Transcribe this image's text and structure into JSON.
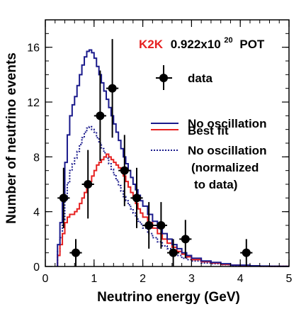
{
  "chart_data": {
    "type": "line",
    "xlabel": "Neutrino energy (GeV)",
    "ylabel": "Number of neutrino events",
    "xlim": [
      0,
      5
    ],
    "ylim": [
      0,
      18
    ],
    "x_ticks": [
      "0",
      "1",
      "2",
      "3",
      "4",
      "5"
    ],
    "y_ticks": [
      "0",
      "4",
      "8",
      "12",
      "16"
    ],
    "header": {
      "experiment": "K2K",
      "exposure": "0.922x10",
      "exponent": "20",
      "unit": "POT"
    },
    "legend_placement": "top-right",
    "legend": [
      {
        "label": "data"
      },
      {
        "label": "No oscillation"
      },
      {
        "label": "Best fit"
      },
      {
        "label": "No oscillation",
        "label_line2": "(normalized",
        "label_line3": "to data)"
      }
    ],
    "bin_edges": [
      0.25,
      0.3,
      0.35,
      0.4,
      0.45,
      0.5,
      0.55,
      0.6,
      0.65,
      0.7,
      0.75,
      0.8,
      0.85,
      0.9,
      0.95,
      1.0,
      1.05,
      1.1,
      1.15,
      1.2,
      1.25,
      1.3,
      1.35,
      1.4,
      1.45,
      1.5,
      1.55,
      1.6,
      1.65,
      1.7,
      1.75,
      1.8,
      1.85,
      1.9,
      1.95,
      2.0,
      2.1,
      2.2,
      2.3,
      2.4,
      2.5,
      2.6,
      2.7,
      2.8,
      2.9,
      3.0,
      3.2,
      3.4,
      3.6,
      3.8,
      4.0,
      4.2,
      4.4,
      4.6,
      4.8,
      5.0
    ],
    "series": [
      {
        "name": "No oscillation",
        "color": "#1a1a8c",
        "style": "solid",
        "values": [
          1.6,
          3.2,
          5.2,
          7.6,
          9.6,
          11.0,
          11.8,
          12.4,
          13.2,
          14.0,
          14.7,
          15.3,
          15.7,
          15.8,
          15.6,
          15.2,
          14.6,
          14.0,
          13.4,
          12.8,
          12.2,
          11.6,
          11.0,
          10.4,
          9.8,
          9.2,
          8.6,
          8.0,
          7.5,
          7.0,
          6.5,
          6.0,
          5.6,
          5.2,
          4.8,
          4.4,
          3.8,
          3.3,
          2.8,
          2.4,
          2.0,
          1.6,
          1.3,
          1.0,
          0.8,
          0.6,
          0.4,
          0.3,
          0.2,
          0.1,
          0.1,
          0.05,
          0.03,
          0.02,
          0.01
        ]
      },
      {
        "name": "Best fit",
        "color": "#e62020",
        "style": "solid",
        "values": [
          0.8,
          1.6,
          2.4,
          3.2,
          3.6,
          3.8,
          3.8,
          4.0,
          4.2,
          4.6,
          5.0,
          5.4,
          5.8,
          6.2,
          6.6,
          7.0,
          7.4,
          7.6,
          7.8,
          8.0,
          8.2,
          8.0,
          7.8,
          7.6,
          7.4,
          7.2,
          7.0,
          6.6,
          6.2,
          5.8,
          5.4,
          5.0,
          4.6,
          4.2,
          3.9,
          3.6,
          3.2,
          2.8,
          2.4,
          2.0,
          1.7,
          1.4,
          1.1,
          0.9,
          0.7,
          0.5,
          0.35,
          0.25,
          0.15,
          0.1,
          0.06,
          0.04,
          0.02,
          0.01,
          0.01
        ]
      },
      {
        "name": "No oscillation (normalized to data)",
        "color": "#1a1a8c",
        "style": "dotted",
        "values": [
          1.1,
          2.1,
          3.4,
          4.9,
          6.1,
          7.0,
          7.5,
          7.9,
          8.4,
          8.9,
          9.4,
          9.8,
          10.1,
          10.2,
          10.0,
          9.8,
          9.4,
          9.0,
          8.6,
          8.3,
          7.9,
          7.5,
          7.1,
          6.7,
          6.3,
          5.9,
          5.5,
          5.1,
          4.8,
          4.5,
          4.2,
          3.9,
          3.6,
          3.3,
          3.1,
          2.8,
          2.4,
          2.1,
          1.8,
          1.5,
          1.3,
          1.0,
          0.8,
          0.6,
          0.5,
          0.4,
          0.25,
          0.2,
          0.13,
          0.07,
          0.06,
          0.03,
          0.02,
          0.01,
          0.01
        ]
      }
    ],
    "data_points": {
      "name": "data",
      "color": "#000000",
      "points": [
        {
          "x": 0.375,
          "y": 5,
          "yerr": 2.2
        },
        {
          "x": 0.625,
          "y": 1,
          "yerr": 1.0
        },
        {
          "x": 0.875,
          "y": 6,
          "yerr": 2.5
        },
        {
          "x": 1.125,
          "y": 11,
          "yerr": 3.3
        },
        {
          "x": 1.375,
          "y": 13,
          "yerr": 3.6
        },
        {
          "x": 1.625,
          "y": 7,
          "yerr": 2.6
        },
        {
          "x": 1.875,
          "y": 5,
          "yerr": 2.2
        },
        {
          "x": 2.125,
          "y": 3,
          "yerr": 1.7
        },
        {
          "x": 2.375,
          "y": 3,
          "yerr": 1.7
        },
        {
          "x": 2.625,
          "y": 1,
          "yerr": 1.0
        },
        {
          "x": 2.875,
          "y": 2,
          "yerr": 1.4
        },
        {
          "x": 4.125,
          "y": 1,
          "yerr": 1.0
        }
      ]
    }
  }
}
